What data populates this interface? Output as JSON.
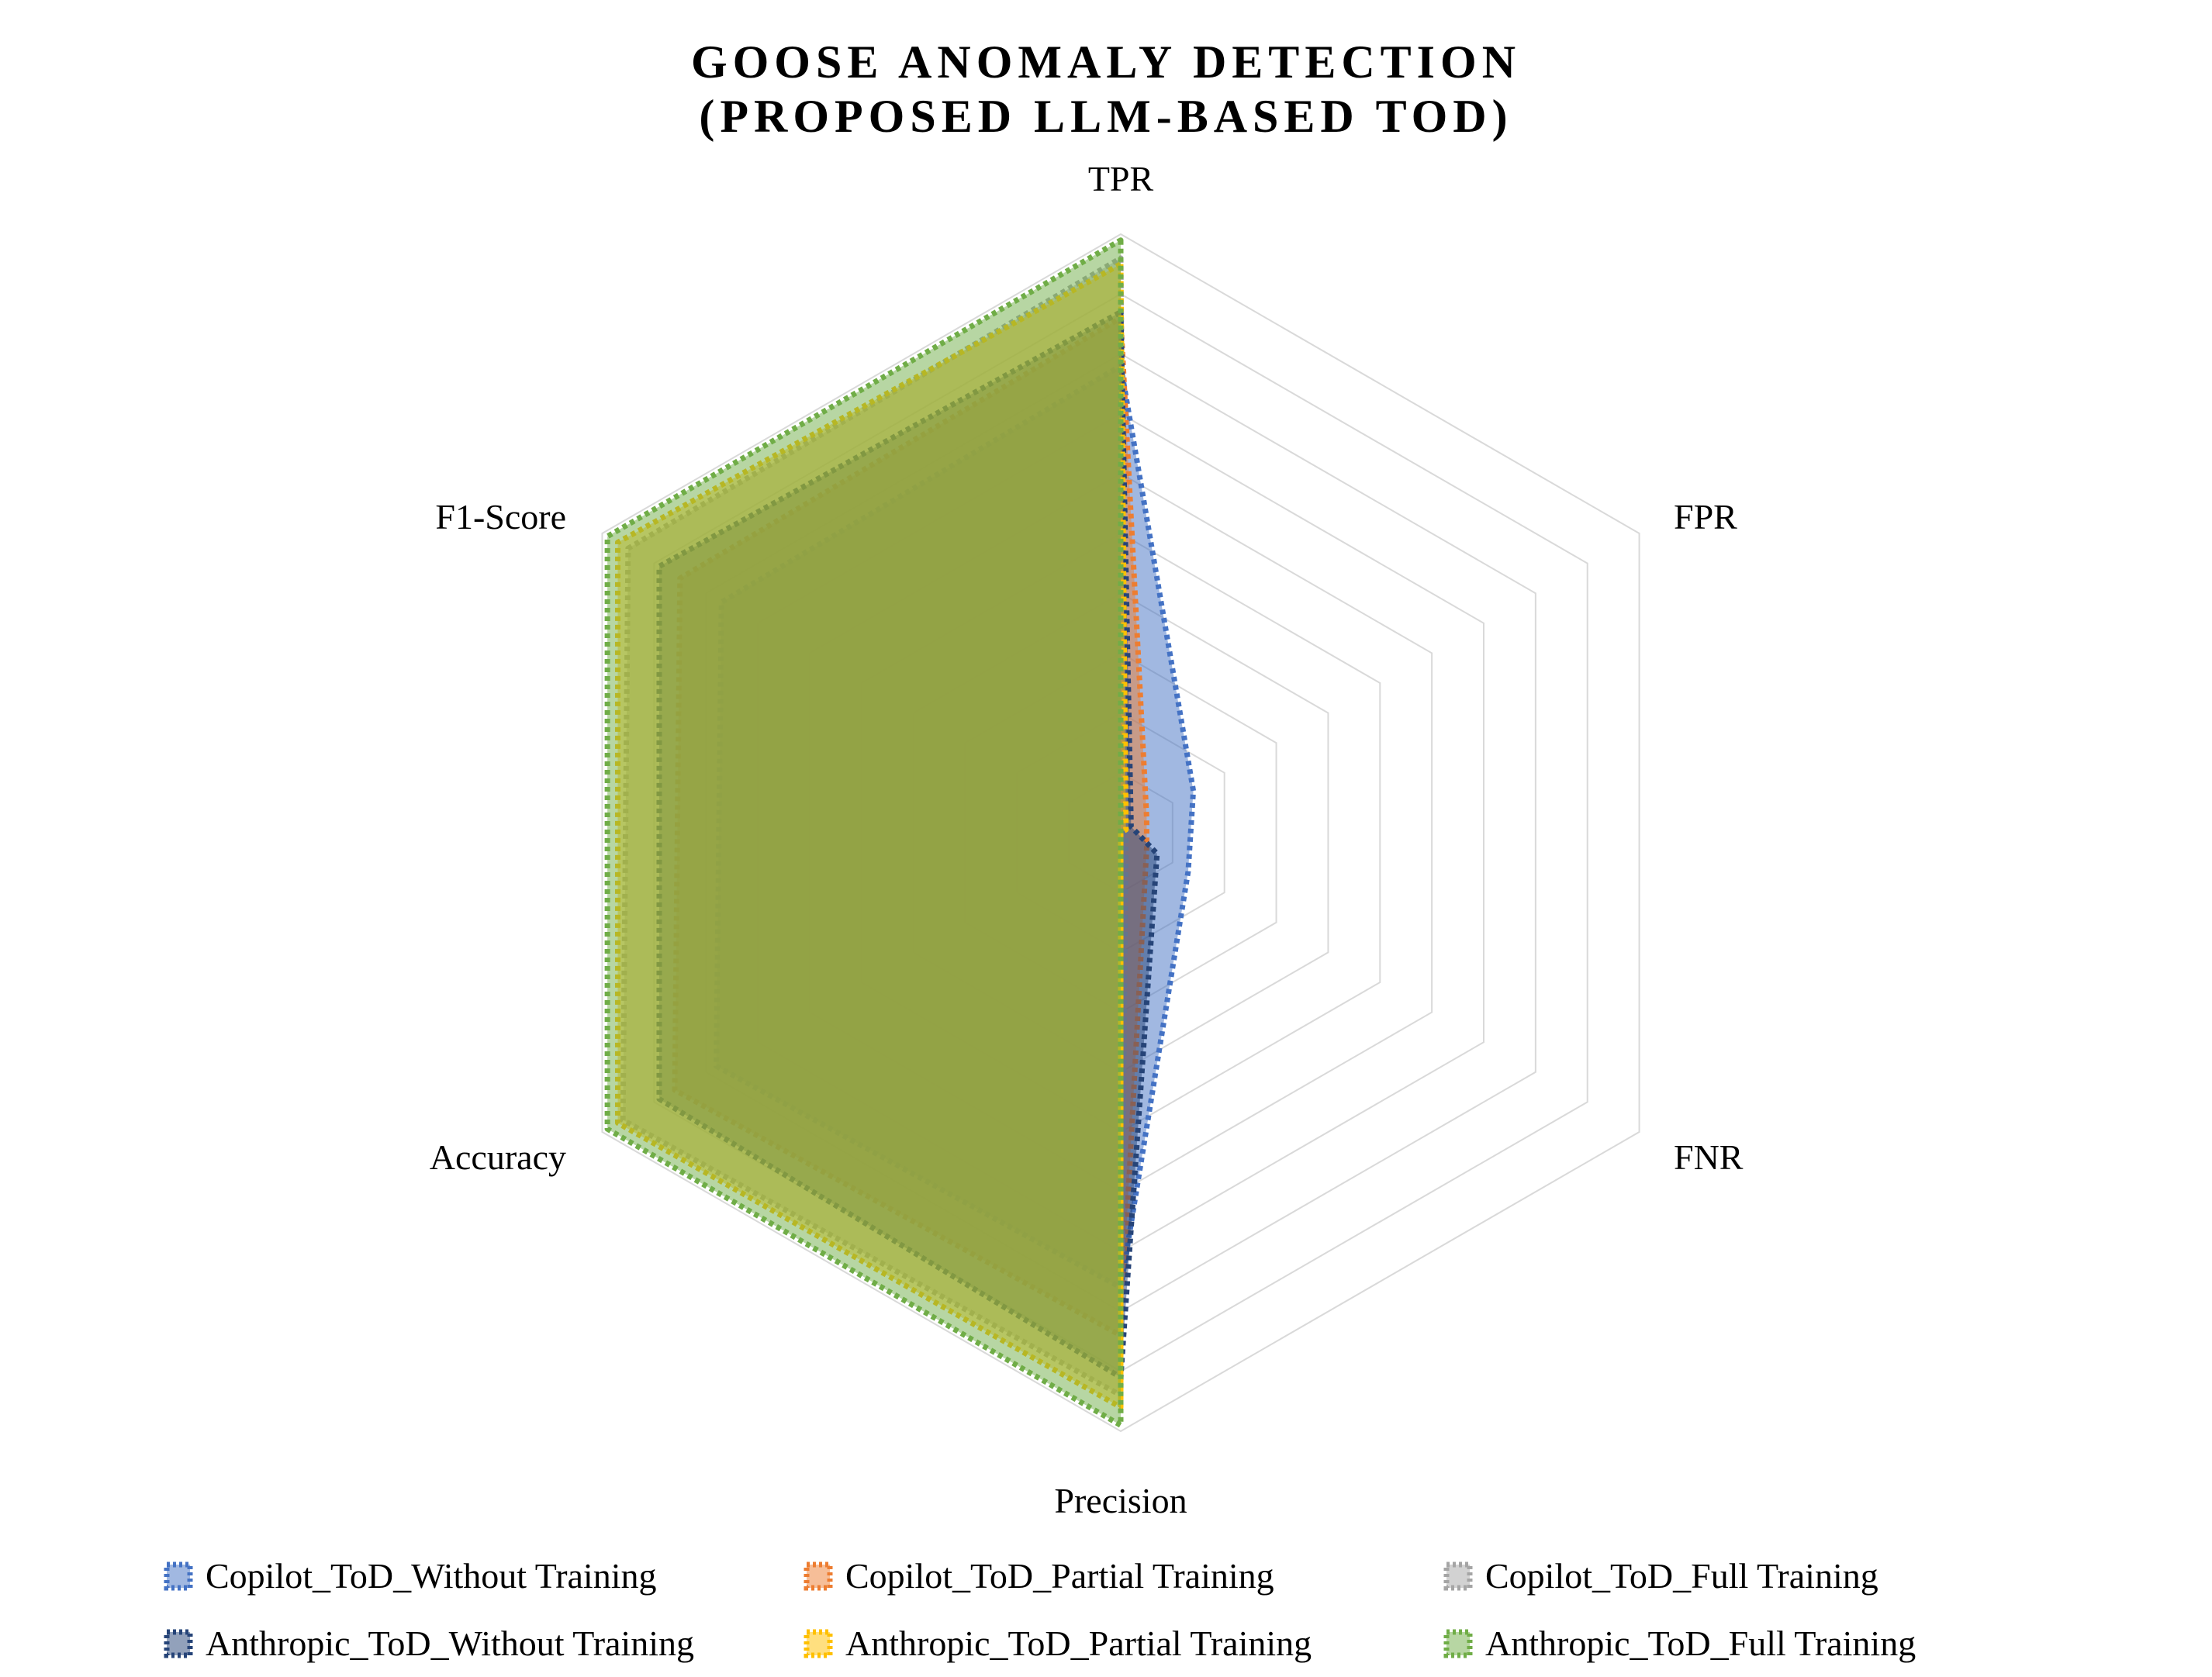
{
  "chart_data": {
    "type": "radar",
    "title_lines": [
      "GOOSE ANOMALY DETECTION",
      "(PROPOSED LLM-BASED TOD)"
    ],
    "axes": [
      "TPR",
      "FPR",
      "FNR",
      "Precision",
      "Accuracy",
      "F1-Score"
    ],
    "range": [
      0,
      1
    ],
    "rings": 10,
    "grid": true,
    "legend_position": "bottom",
    "series": [
      {
        "name": "Copilot_ToD_Without Training",
        "color": "#4472C4",
        "values": [
          0.78,
          0.14,
          0.13,
          0.76,
          0.78,
          0.77
        ]
      },
      {
        "name": "Copilot_ToD_Partial Training",
        "color": "#ED7D31",
        "values": [
          0.86,
          0.05,
          0.05,
          0.84,
          0.86,
          0.85
        ]
      },
      {
        "name": "Copilot_ToD_Full Training",
        "color": "#A5A5A5",
        "values": [
          0.96,
          0.01,
          0.01,
          0.94,
          0.96,
          0.95
        ]
      },
      {
        "name": "Anthropic_ToD_Without Training",
        "color": "#264478",
        "values": [
          0.87,
          0.02,
          0.07,
          0.91,
          0.89,
          0.89
        ]
      },
      {
        "name": "Anthropic_ToD_Partial Training",
        "color": "#FFC000",
        "values": [
          0.95,
          0.01,
          0.0,
          0.96,
          0.97,
          0.97
        ]
      },
      {
        "name": "Anthropic_ToD_Full Training",
        "color": "#70AD47",
        "values": [
          0.99,
          0.0,
          0.0,
          0.99,
          0.99,
          0.99
        ]
      }
    ]
  }
}
